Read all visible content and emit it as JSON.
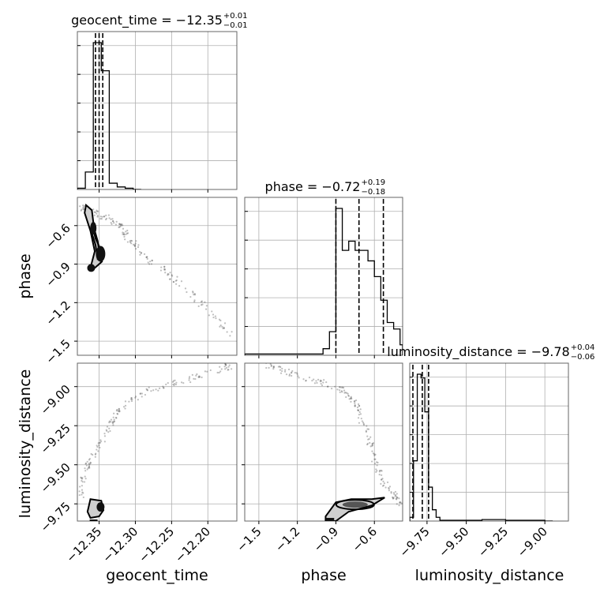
{
  "chart_data": {
    "type": "corner",
    "parameters": [
      "geocent_time",
      "phase",
      "luminosity_distance"
    ],
    "axes": {
      "geocent_time": {
        "label": "geocent_time",
        "range": [
          -12.38,
          -12.16
        ],
        "ticks": [
          -12.35,
          -12.3,
          -12.25,
          -12.2
        ],
        "tick_labels": [
          "−12.35",
          "−12.30",
          "−12.25",
          "−12.20"
        ]
      },
      "phase": {
        "label": "phase",
        "range": [
          -1.61,
          -0.38
        ],
        "ticks": [
          -1.5,
          -1.2,
          -0.9,
          -0.6
        ],
        "tick_labels": [
          "−1.5",
          "−1.2",
          "−0.9",
          "−0.6"
        ]
      },
      "luminosity_distance": {
        "label": "luminosity_distance",
        "range": [
          -9.86,
          -8.85
        ],
        "ticks": [
          -9.75,
          -9.5,
          -9.25,
          -9.0
        ],
        "tick_labels": [
          "−9.75",
          "−9.50",
          "−9.25",
          "−9.00"
        ]
      }
    },
    "titles": [
      {
        "param": "geocent_time",
        "prefix": "geocent_time = ",
        "median": "−12.35",
        "upper": "+0.01",
        "lower": "−0.01",
        "quantiles": [
          -12.355,
          -12.35,
          -12.345
        ]
      },
      {
        "param": "phase",
        "prefix": "phase = ",
        "median": "−0.72",
        "upper": "+0.19",
        "lower": "−0.18",
        "quantiles": [
          -0.9,
          -0.72,
          -0.53
        ]
      },
      {
        "param": "luminosity_distance",
        "prefix": "luminosity_distance = ",
        "median": "−9.78",
        "upper": "+0.04",
        "lower": "−0.06",
        "quantiles": [
          -9.84,
          -9.78,
          -9.74
        ]
      }
    ],
    "histograms": {
      "geocent_time": {
        "edges": [
          -12.38,
          -12.369,
          -12.358,
          -12.347,
          -12.336,
          -12.325,
          -12.314,
          -12.303,
          -12.292
        ],
        "counts": [
          2,
          28,
          235,
          190,
          10,
          4,
          2,
          0
        ]
      },
      "phase": {
        "edges": [
          -1.61,
          -1.0,
          -0.95,
          -0.9,
          -0.85,
          -0.8,
          -0.75,
          -0.7,
          -0.65,
          -0.6,
          -0.55,
          -0.5,
          -0.45,
          -0.4,
          -0.38
        ],
        "counts": [
          1,
          5,
          18,
          112,
          80,
          87,
          80,
          80,
          72,
          60,
          42,
          25,
          20,
          8
        ]
      },
      "luminosity_distance": {
        "edges": [
          -9.86,
          -9.836,
          -9.812,
          -9.788,
          -9.764,
          -9.74,
          -9.716,
          -9.692,
          -9.668,
          -9.644,
          -9.4,
          -9.25,
          -9.15,
          -9.0,
          -8.95
        ],
        "counts": [
          5,
          80,
          195,
          190,
          145,
          45,
          15,
          5,
          1,
          1,
          2,
          1,
          1,
          0
        ]
      }
    },
    "scatter_trails": {
      "geocent_time_vs_phase": [
        [
          -12.375,
          -0.45
        ],
        [
          -12.36,
          -0.5
        ],
        [
          -12.34,
          -0.54
        ],
        [
          -12.32,
          -0.6
        ],
        [
          -12.31,
          -0.7
        ],
        [
          -12.29,
          -0.82
        ],
        [
          -12.26,
          -0.95
        ],
        [
          -12.23,
          -1.1
        ],
        [
          -12.2,
          -1.25
        ],
        [
          -12.17,
          -1.45
        ]
      ],
      "geocent_time_vs_luminosity_distance": [
        [
          -12.375,
          -9.72
        ],
        [
          -12.37,
          -9.55
        ],
        [
          -12.36,
          -9.45
        ],
        [
          -12.34,
          -9.3
        ],
        [
          -12.33,
          -9.2
        ],
        [
          -12.31,
          -9.1
        ],
        [
          -12.28,
          -9.02
        ],
        [
          -12.24,
          -8.97
        ],
        [
          -12.2,
          -8.92
        ],
        [
          -12.17,
          -8.87
        ]
      ],
      "phase_vs_luminosity_distance": [
        [
          -1.45,
          -8.86
        ],
        [
          -1.3,
          -8.9
        ],
        [
          -1.1,
          -8.96
        ],
        [
          -0.9,
          -9.0
        ],
        [
          -0.8,
          -9.05
        ],
        [
          -0.72,
          -9.15
        ],
        [
          -0.66,
          -9.3
        ],
        [
          -0.6,
          -9.45
        ],
        [
          -0.55,
          -9.6
        ],
        [
          -0.45,
          -9.7
        ],
        [
          -0.4,
          -9.75
        ]
      ]
    },
    "grid": true
  }
}
